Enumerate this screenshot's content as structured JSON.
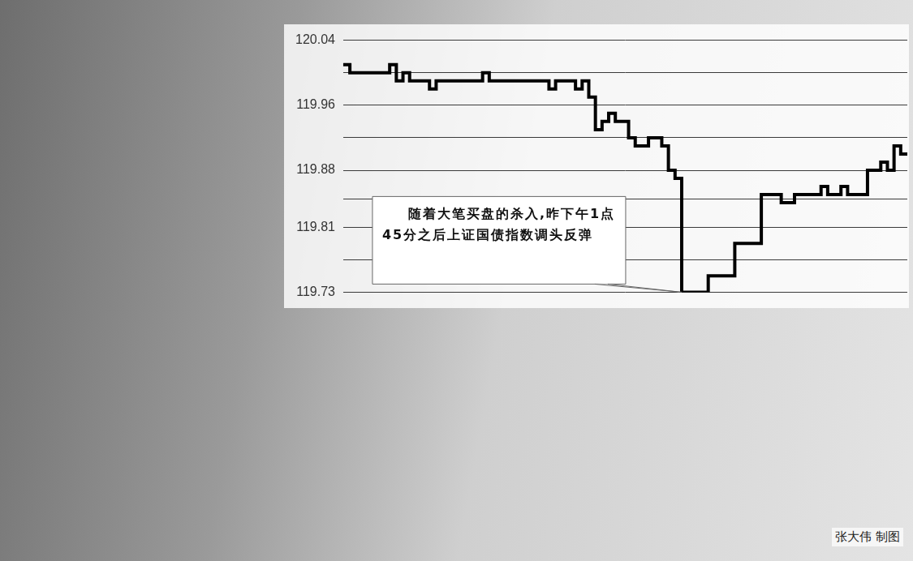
{
  "chart_data": {
    "type": "line",
    "categories": [
      null,
      null,
      null,
      null,
      null,
      null,
      null,
      null,
      null,
      null,
      null,
      null,
      null,
      null,
      null,
      null,
      null,
      null,
      null,
      null,
      null,
      null,
      null,
      null,
      null,
      null,
      null,
      null,
      null,
      null,
      null,
      null,
      null,
      null,
      null,
      null,
      null,
      null,
      null,
      null,
      null,
      null,
      null,
      null,
      null,
      null,
      null,
      null,
      null,
      null,
      null,
      null,
      null,
      null,
      null,
      null,
      null,
      null,
      null,
      null,
      null,
      null,
      null,
      null,
      null,
      null,
      null,
      null,
      null,
      null,
      null,
      null,
      null,
      null,
      null,
      null,
      null,
      null,
      null,
      null,
      null,
      null,
      null,
      null,
      null,
      null
    ],
    "values": [
      120.01,
      120.0,
      120.0,
      120.0,
      120.0,
      120.0,
      120.0,
      120.01,
      119.99,
      120.0,
      119.99,
      119.99,
      119.99,
      119.98,
      119.99,
      119.99,
      119.99,
      119.99,
      119.99,
      119.99,
      119.99,
      120.0,
      119.99,
      119.99,
      119.99,
      119.99,
      119.99,
      119.99,
      119.99,
      119.99,
      119.99,
      119.98,
      119.99,
      119.99,
      119.99,
      119.98,
      119.99,
      119.97,
      119.93,
      119.94,
      119.95,
      119.94,
      119.94,
      119.92,
      119.91,
      119.91,
      119.92,
      119.92,
      119.91,
      119.88,
      119.87,
      119.73,
      119.73,
      119.73,
      119.73,
      119.75,
      119.75,
      119.75,
      119.75,
      119.79,
      119.79,
      119.79,
      119.79,
      119.85,
      119.85,
      119.85,
      119.84,
      119.84,
      119.85,
      119.85,
      119.85,
      119.85,
      119.86,
      119.85,
      119.85,
      119.86,
      119.85,
      119.85,
      119.85,
      119.88,
      119.88,
      119.89,
      119.88,
      119.91,
      119.9,
      119.9
    ],
    "color": "#000000",
    "line_style": "stepped",
    "ylim": [
      119.73,
      120.04
    ],
    "yticks": [
      120.04,
      119.96,
      119.88,
      119.81,
      119.73
    ],
    "grid": true,
    "tick_labels": "y",
    "annotations": [
      {
        "text": "随着大笔买盘的杀入,昨下午1点45分之后上证国债指数调头反弹"
      }
    ],
    "credit": "张大伟 制图"
  }
}
